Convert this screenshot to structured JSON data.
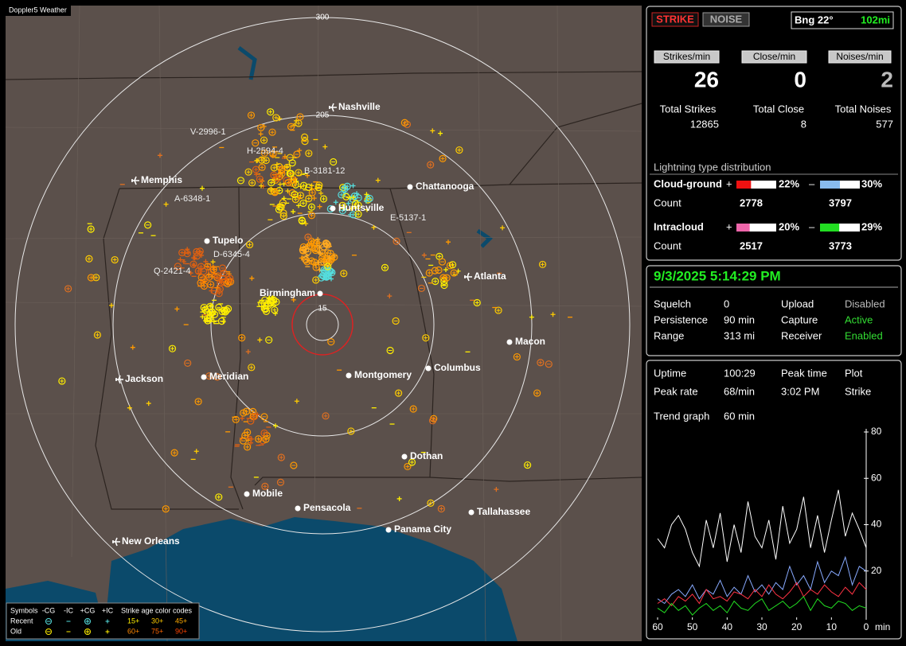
{
  "app_title": "Doppler5 Weather",
  "map": {
    "range_labels": [
      "300",
      "205",
      "15"
    ],
    "cities": [
      "Nashville",
      "Memphis",
      "Chattanooga",
      "Huntsville",
      "Tupelo",
      "Atlanta",
      "Birmingham",
      "Macon",
      "Jackson",
      "Meridian",
      "Montgomery",
      "Columbus",
      "Dothan",
      "Mobile",
      "Pensacola",
      "Tallahassee",
      "Panama City",
      "New Orleans"
    ],
    "storm_labels": [
      "V-2996-1",
      "H-2594-4",
      "B-3181-12",
      "A-6348-1",
      "E-5137-1",
      "D-6345-4",
      "Q-2421-4"
    ]
  },
  "legend": {
    "symbols_title": "Symbols",
    "symbol_headers": [
      "-CG",
      "-IC",
      "+CG",
      "+IC"
    ],
    "age_title": "Strike age color codes",
    "rows": [
      {
        "label": "Recent",
        "ages": [
          "15+",
          "30+",
          "45+"
        ]
      },
      {
        "label": "Old",
        "ages": [
          "60+",
          "75+",
          "90+"
        ]
      }
    ]
  },
  "panel": {
    "mode_buttons": [
      "STRIKE",
      "NOISE"
    ],
    "bearing": "Bng 22°",
    "distance": "102mi",
    "rates": [
      {
        "label": "Strikes/min",
        "value": 26
      },
      {
        "label": "Close/min",
        "value": 0
      },
      {
        "label": "Noises/min",
        "value": 2
      }
    ],
    "totals": [
      {
        "label": "Total Strikes",
        "value": 12865
      },
      {
        "label": "Total Close",
        "value": 8
      },
      {
        "label": "Total Noises",
        "value": 577
      }
    ],
    "distribution": {
      "title": "Lightning type distribution",
      "count_label": "Count",
      "rows": [
        {
          "name": "Cloud-ground",
          "positive": {
            "sign": "+",
            "percent": {
              "value": 22,
              "label": "22%"
            },
            "count": 2778,
            "color": "#ee1111"
          },
          "negative": {
            "sign": "–",
            "percent": {
              "value": 30,
              "label": "30%"
            },
            "count": 3797,
            "color": "#88bbee"
          }
        },
        {
          "name": "Intracloud",
          "positive": {
            "sign": "+",
            "percent": {
              "value": 20,
              "label": "20%"
            },
            "count": 2517,
            "color": "#ee66aa"
          },
          "negative": {
            "sign": "–",
            "percent": {
              "value": 29,
              "label": "29%"
            },
            "count": 3773,
            "color": "#22dd22"
          }
        }
      ]
    }
  },
  "status": {
    "datetime": "9/3/2025 5:14:29 PM",
    "items": [
      {
        "label": "Squelch",
        "value": "0"
      },
      {
        "label": "Upload",
        "value": "Disabled",
        "color": "#bbbbbb"
      },
      {
        "label": "Persistence",
        "value": "90 min"
      },
      {
        "label": "Capture",
        "value": "Active",
        "color": "#33dd33"
      },
      {
        "label": "Range",
        "value": "313 mi"
      },
      {
        "label": "Receiver",
        "value": "Enabled",
        "color": "#33dd33"
      }
    ]
  },
  "stats": {
    "items": [
      {
        "label": "Uptime",
        "value": "100:29"
      },
      {
        "label": "Peak time",
        "value": "Plot"
      },
      {
        "label": "Peak rate",
        "value": "68/min"
      },
      {
        "label": "3:02 PM",
        "value": "Strike"
      }
    ],
    "trend_label": "Trend graph",
    "trend_value": "60 min"
  },
  "trend_chart": {
    "type": "line",
    "x": [
      60,
      58,
      56,
      54,
      52,
      50,
      48,
      46,
      44,
      42,
      40,
      38,
      36,
      34,
      32,
      30,
      28,
      26,
      24,
      22,
      20,
      18,
      16,
      14,
      12,
      10,
      8,
      6,
      4,
      2,
      0
    ],
    "xlim": [
      60,
      0
    ],
    "xticks": [
      60,
      50,
      40,
      30,
      20,
      10,
      0
    ],
    "x_unit": "min",
    "ylim": [
      0,
      80
    ],
    "yticks": [
      20,
      40,
      60,
      80
    ],
    "series": [
      {
        "color": "#ffffff",
        "values": [
          34,
          30,
          40,
          44,
          38,
          28,
          22,
          42,
          30,
          45,
          24,
          40,
          28,
          50,
          35,
          30,
          42,
          25,
          48,
          32,
          38,
          52,
          30,
          44,
          28,
          42,
          55,
          35,
          45,
          38,
          30
        ]
      },
      {
        "color": "#88aaff",
        "values": [
          8,
          6,
          10,
          12,
          9,
          14,
          8,
          12,
          10,
          16,
          9,
          13,
          10,
          18,
          11,
          14,
          10,
          15,
          12,
          22,
          14,
          18,
          12,
          24,
          15,
          20,
          18,
          26,
          14,
          22,
          20
        ]
      },
      {
        "color": "#ff3344",
        "values": [
          6,
          8,
          5,
          9,
          7,
          10,
          6,
          12,
          8,
          9,
          7,
          11,
          10,
          8,
          12,
          9,
          14,
          10,
          8,
          11,
          15,
          9,
          12,
          10,
          14,
          11,
          9,
          13,
          10,
          15,
          12
        ]
      },
      {
        "color": "#22dd22",
        "values": [
          4,
          2,
          6,
          3,
          5,
          1,
          4,
          6,
          3,
          5,
          2,
          7,
          4,
          3,
          6,
          8,
          3,
          5,
          7,
          4,
          6,
          9,
          3,
          8,
          5,
          4,
          7,
          6,
          3,
          5,
          4
        ]
      }
    ]
  }
}
